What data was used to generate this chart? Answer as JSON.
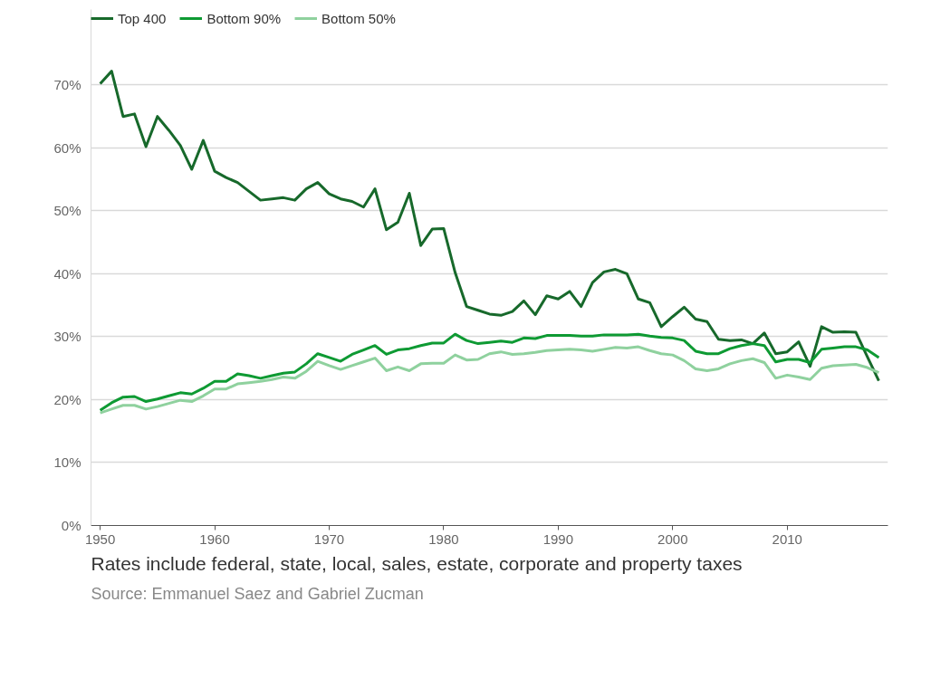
{
  "chart_data": {
    "type": "line",
    "x": [
      1950,
      1951,
      1952,
      1953,
      1954,
      1955,
      1956,
      1957,
      1958,
      1959,
      1960,
      1961,
      1962,
      1963,
      1964,
      1965,
      1966,
      1967,
      1968,
      1969,
      1970,
      1971,
      1972,
      1973,
      1974,
      1975,
      1976,
      1977,
      1978,
      1979,
      1980,
      1981,
      1982,
      1983,
      1984,
      1985,
      1986,
      1987,
      1988,
      1989,
      1990,
      1991,
      1992,
      1993,
      1994,
      1995,
      1996,
      1997,
      1998,
      1999,
      2000,
      2001,
      2002,
      2003,
      2004,
      2005,
      2006,
      2007,
      2008,
      2009,
      2010,
      2011,
      2012,
      2013,
      2014,
      2015,
      2016,
      2017,
      2018
    ],
    "series": [
      {
        "name": "Top 400",
        "color": "#17692b",
        "values": [
          70.2,
          72.2,
          65,
          65.4,
          60.2,
          65,
          62.8,
          60.4,
          56.6,
          61.2,
          56.3,
          55.3,
          54.5,
          53.1,
          51.7,
          51.9,
          52.1,
          51.7,
          53.5,
          54.5,
          52.7,
          51.9,
          51.5,
          50.6,
          53.5,
          47,
          48.2,
          52.8,
          44.5,
          47.1,
          47.2,
          40.2,
          34.8,
          34.2,
          33.6,
          33.4,
          34,
          35.7,
          33.5,
          36.5,
          36,
          37.2,
          34.8,
          38.6,
          40.3,
          40.7,
          40,
          36,
          35.4,
          31.6,
          33.2,
          34.7,
          32.8,
          32.4,
          29.6,
          29.4,
          29.5,
          28.9,
          30.6,
          27.3,
          27.6,
          29.2,
          25.3,
          31.6,
          30.7,
          30.8,
          30.7,
          26.8,
          23
        ]
      },
      {
        "name": "Bottom 90%",
        "color": "#0e9a33",
        "values": [
          18.3,
          19.5,
          20.4,
          20.5,
          19.7,
          20.1,
          20.6,
          21.1,
          20.9,
          21.8,
          22.9,
          22.9,
          24.1,
          23.8,
          23.4,
          23.8,
          24.2,
          24.4,
          25.7,
          27.3,
          26.7,
          26.1,
          27.2,
          27.9,
          28.6,
          27.2,
          27.9,
          28.1,
          28.6,
          29,
          29,
          30.4,
          29.4,
          28.9,
          29.1,
          29.3,
          29.1,
          29.8,
          29.7,
          30.2,
          30.2,
          30.2,
          30.1,
          30.1,
          30.3,
          30.3,
          30.3,
          30.4,
          30.1,
          29.9,
          29.8,
          29.4,
          27.7,
          27.3,
          27.3,
          28.1,
          28.6,
          28.9,
          28.6,
          26,
          26.4,
          26.4,
          25.9,
          28,
          28.2,
          28.4,
          28.4,
          27.9,
          26.7
        ]
      },
      {
        "name": "Bottom 50%",
        "color": "#8fd19e",
        "values": [
          17.9,
          18.5,
          19.1,
          19.1,
          18.5,
          18.9,
          19.4,
          19.9,
          19.7,
          20.6,
          21.7,
          21.7,
          22.5,
          22.7,
          22.9,
          23.2,
          23.6,
          23.4,
          24.5,
          26.1,
          25.4,
          24.8,
          25.4,
          26,
          26.6,
          24.6,
          25.2,
          24.6,
          25.7,
          25.8,
          25.8,
          27.1,
          26.3,
          26.4,
          27.3,
          27.6,
          27.2,
          27.3,
          27.5,
          27.8,
          27.9,
          28,
          27.9,
          27.7,
          28,
          28.3,
          28.2,
          28.4,
          27.8,
          27.3,
          27.1,
          26.2,
          24.9,
          24.6,
          24.9,
          25.7,
          26.2,
          26.5,
          25.9,
          23.4,
          23.9,
          23.6,
          23.2,
          25,
          25.4,
          25.5,
          25.6,
          25.1,
          24.3
        ]
      }
    ],
    "xlim": [
      1949.2,
      2018.8
    ],
    "xticks": [
      1950,
      1960,
      1970,
      1980,
      1990,
      2000,
      2010
    ],
    "ylim": [
      0,
      82
    ],
    "yticks": [
      {
        "value": 0,
        "label": "0%"
      },
      {
        "value": 10,
        "label": "10%"
      },
      {
        "value": 20,
        "label": "20%"
      },
      {
        "value": 30,
        "label": "30%"
      },
      {
        "value": 40,
        "label": "40%"
      },
      {
        "value": 50,
        "label": "50%"
      },
      {
        "value": 60,
        "label": "60%"
      },
      {
        "value": 70,
        "label": "70%"
      }
    ],
    "grid": "y",
    "legend": "top left",
    "line_style": "solid",
    "marker": "none",
    "annotations": [
      "Rates include federal, state, local, sales, estate, corporate and property taxes",
      "Source: Emmanuel Saez and Gabriel Zucman"
    ]
  }
}
